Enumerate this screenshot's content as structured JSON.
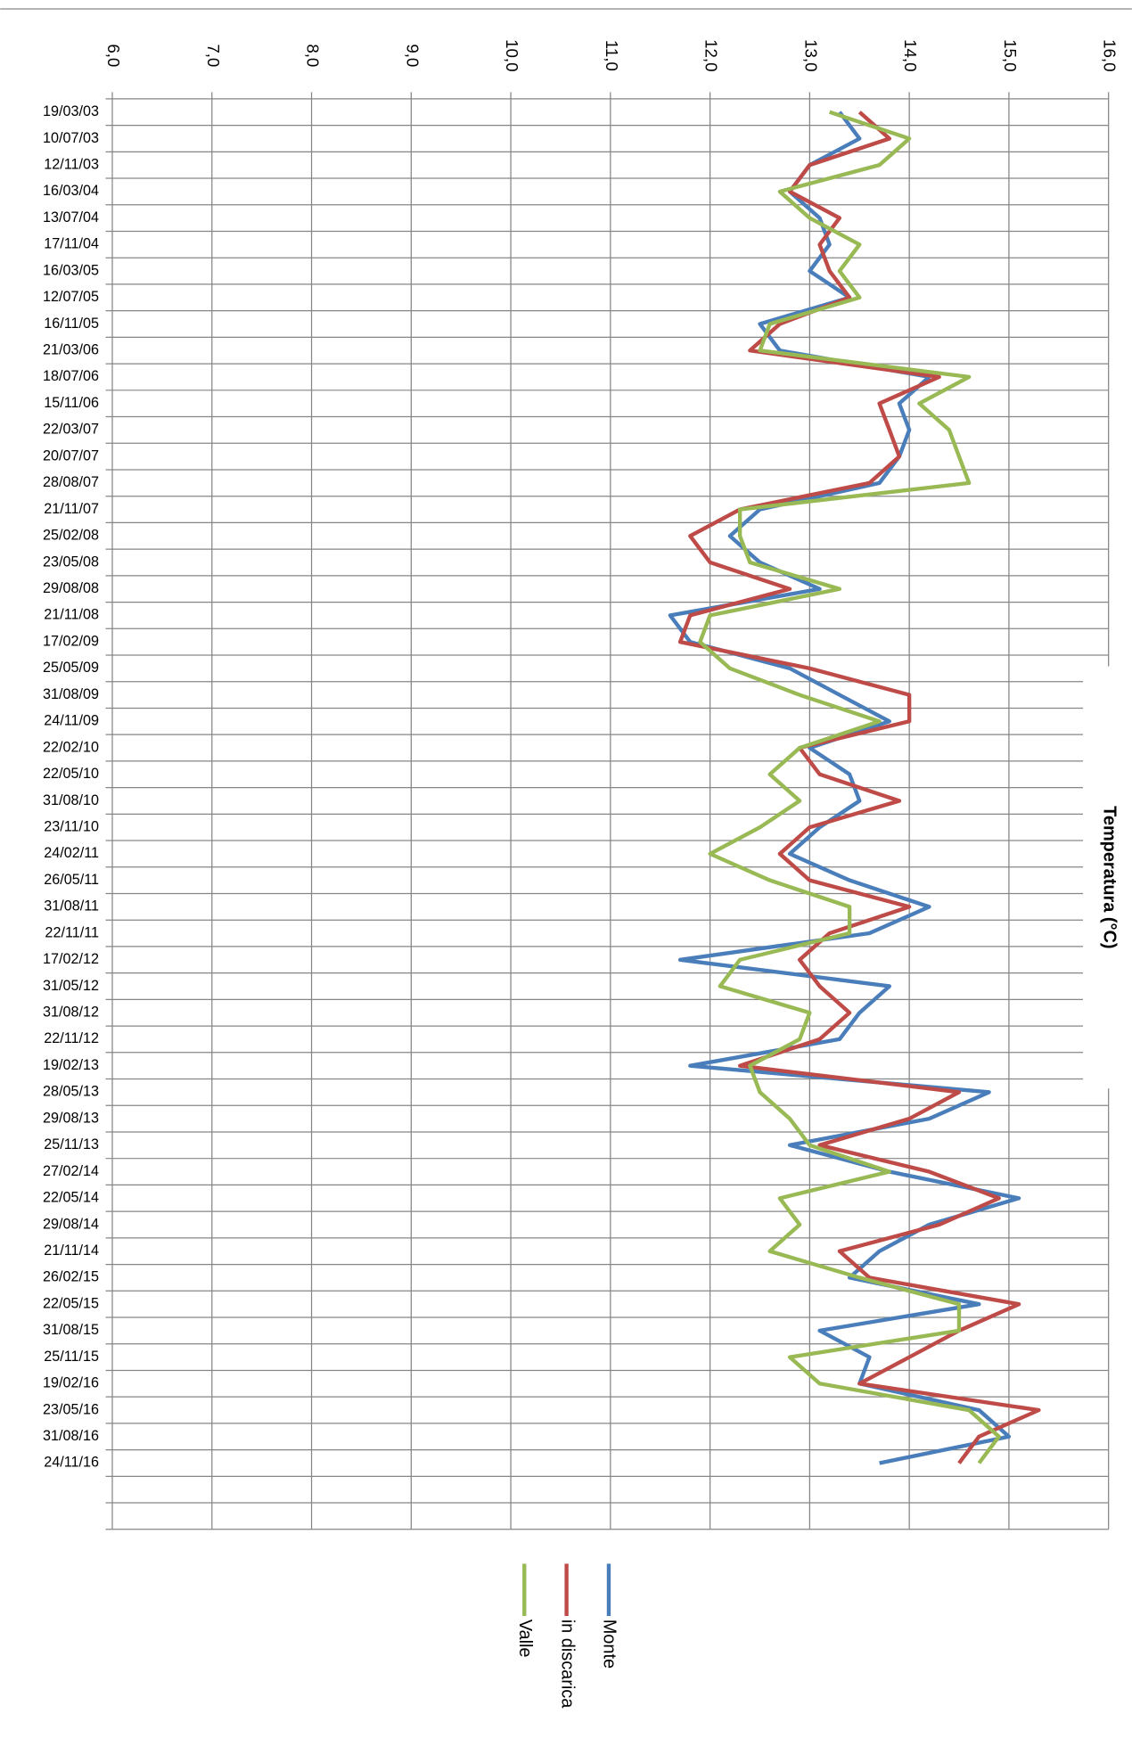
{
  "chart_data": {
    "type": "line",
    "orientation": "rotated",
    "axis_title": "Temperatura (°C)",
    "categories": [
      "19/03/03",
      "10/07/03",
      "12/11/03",
      "16/03/04",
      "13/07/04",
      "17/11/04",
      "16/03/05",
      "12/07/05",
      "16/11/05",
      "21/03/06",
      "18/07/06",
      "15/11/06",
      "22/03/07",
      "20/07/07",
      "28/08/07",
      "21/11/07",
      "25/02/08",
      "23/05/08",
      "29/08/08",
      "21/11/08",
      "17/02/09",
      "25/05/09",
      "31/08/09",
      "24/11/09",
      "22/02/10",
      "22/05/10",
      "31/08/10",
      "23/11/10",
      "24/02/11",
      "26/05/11",
      "31/08/11",
      "22/11/11",
      "17/02/12",
      "31/05/12",
      "31/08/12",
      "22/11/12",
      "19/02/13",
      "28/05/13",
      "29/08/13",
      "25/11/13",
      "27/02/14",
      "22/05/14",
      "29/08/14",
      "21/11/14",
      "26/02/15",
      "22/05/15",
      "31/08/15",
      "25/11/15",
      "19/02/16",
      "23/05/16",
      "31/08/16",
      "24/11/16",
      null,
      null
    ],
    "series": [
      {
        "name": "Monte",
        "color": "#4a7ebb",
        "values": [
          13.3,
          13.5,
          13.0,
          12.8,
          13.1,
          13.2,
          13.0,
          13.4,
          12.5,
          12.7,
          14.2,
          13.9,
          14.0,
          13.9,
          13.7,
          12.5,
          12.2,
          12.5,
          13.1,
          11.6,
          11.8,
          12.8,
          13.3,
          13.8,
          13.0,
          13.4,
          13.5,
          13.1,
          12.8,
          13.4,
          14.2,
          13.6,
          11.7,
          13.8,
          13.5,
          13.3,
          11.8,
          14.8,
          14.2,
          12.8,
          13.8,
          15.1,
          14.2,
          13.7,
          13.4,
          14.7,
          13.1,
          13.6,
          13.5,
          14.7,
          15.0,
          13.7,
          null,
          null
        ]
      },
      {
        "name": "in discarica",
        "color": "#be4b48",
        "values": [
          13.5,
          13.8,
          13.0,
          12.8,
          13.3,
          13.1,
          13.2,
          13.4,
          12.7,
          12.4,
          14.3,
          13.7,
          13.8,
          13.9,
          13.6,
          12.3,
          11.8,
          12.0,
          12.8,
          11.8,
          11.7,
          13.0,
          14.0,
          14.0,
          12.9,
          13.1,
          13.9,
          13.0,
          12.7,
          13.0,
          14.0,
          13.2,
          12.9,
          13.1,
          13.4,
          13.1,
          12.3,
          14.5,
          14.0,
          13.1,
          14.2,
          14.9,
          14.3,
          13.3,
          13.6,
          15.1,
          14.5,
          14.0,
          13.5,
          15.3,
          14.7,
          14.5,
          null,
          null
        ]
      },
      {
        "name": "Valle",
        "color": "#98b954",
        "values": [
          13.2,
          14.0,
          13.7,
          12.7,
          13.0,
          13.5,
          13.3,
          13.5,
          12.6,
          12.5,
          14.6,
          14.1,
          14.4,
          14.5,
          14.6,
          12.3,
          12.3,
          12.4,
          13.3,
          12.0,
          11.9,
          12.2,
          12.9,
          13.7,
          12.9,
          12.6,
          12.9,
          12.5,
          12.0,
          12.6,
          13.4,
          13.4,
          12.3,
          12.1,
          13.0,
          12.9,
          12.4,
          12.5,
          12.8,
          13.0,
          13.8,
          12.7,
          12.9,
          12.6,
          13.5,
          14.5,
          14.5,
          12.8,
          13.1,
          14.6,
          14.9,
          14.7,
          null,
          null
        ]
      }
    ],
    "xlim": [
      6,
      16
    ],
    "xticks": [
      {
        "value": 6,
        "label": "6,0"
      },
      {
        "value": 7,
        "label": "7,0"
      },
      {
        "value": 8,
        "label": "8,0"
      },
      {
        "value": 9,
        "label": "9,0"
      },
      {
        "value": 10,
        "label": "10,0"
      },
      {
        "value": 11,
        "label": "11,0"
      },
      {
        "value": 12,
        "label": "12,0"
      },
      {
        "value": 13,
        "label": "13,0"
      },
      {
        "value": 14,
        "label": "14,0"
      },
      {
        "value": 15,
        "label": "15,0"
      },
      {
        "value": 16,
        "label": "16,0"
      }
    ],
    "grid": true
  }
}
